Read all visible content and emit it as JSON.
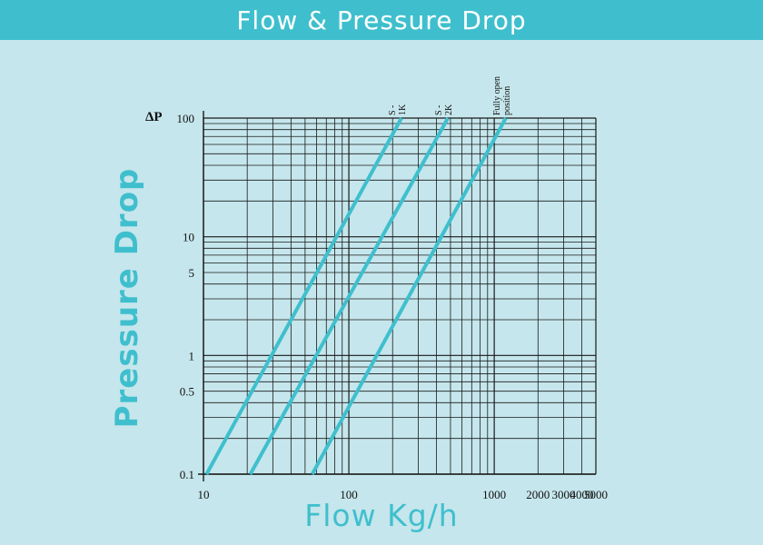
{
  "header": {
    "title": "Flow & Pressure Drop"
  },
  "chart_data": {
    "type": "line",
    "title": "Flow & Pressure Drop",
    "xlabel": "Flow Kg/h",
    "ylabel": "Pressure Drop",
    "ysymbol": "ΔP",
    "xscale": "log",
    "yscale": "log",
    "xlim": [
      10,
      5000
    ],
    "ylim": [
      0.1,
      100
    ],
    "grid": true,
    "x_tick_labels": [
      {
        "value": 10,
        "label": "10"
      },
      {
        "value": 100,
        "label": "100"
      },
      {
        "value": 1000,
        "label": "1000"
      },
      {
        "value": 2000,
        "label": "2000"
      },
      {
        "value": 3000,
        "label": "3000"
      },
      {
        "value": 4000,
        "label": "4000"
      },
      {
        "value": 5000,
        "label": "5000"
      }
    ],
    "y_tick_labels": [
      {
        "value": 0.1,
        "label": "0.1"
      },
      {
        "value": 0.5,
        "label": "0.5"
      },
      {
        "value": 1,
        "label": "1"
      },
      {
        "value": 5,
        "label": "5"
      },
      {
        "value": 10,
        "label": "10"
      },
      {
        "value": 100,
        "label": "100"
      }
    ],
    "series": [
      {
        "name": "S - 1K",
        "x": [
          10.5,
          230
        ],
        "y": [
          0.1,
          100
        ]
      },
      {
        "name": "S - 2K",
        "x": [
          21,
          480
        ],
        "y": [
          0.1,
          100
        ]
      },
      {
        "name": "Fully open position",
        "x": [
          56,
          1200
        ],
        "y": [
          0.1,
          100
        ]
      }
    ],
    "line_color": "#3fbfcd",
    "grid_color": "#1a1a1a"
  }
}
